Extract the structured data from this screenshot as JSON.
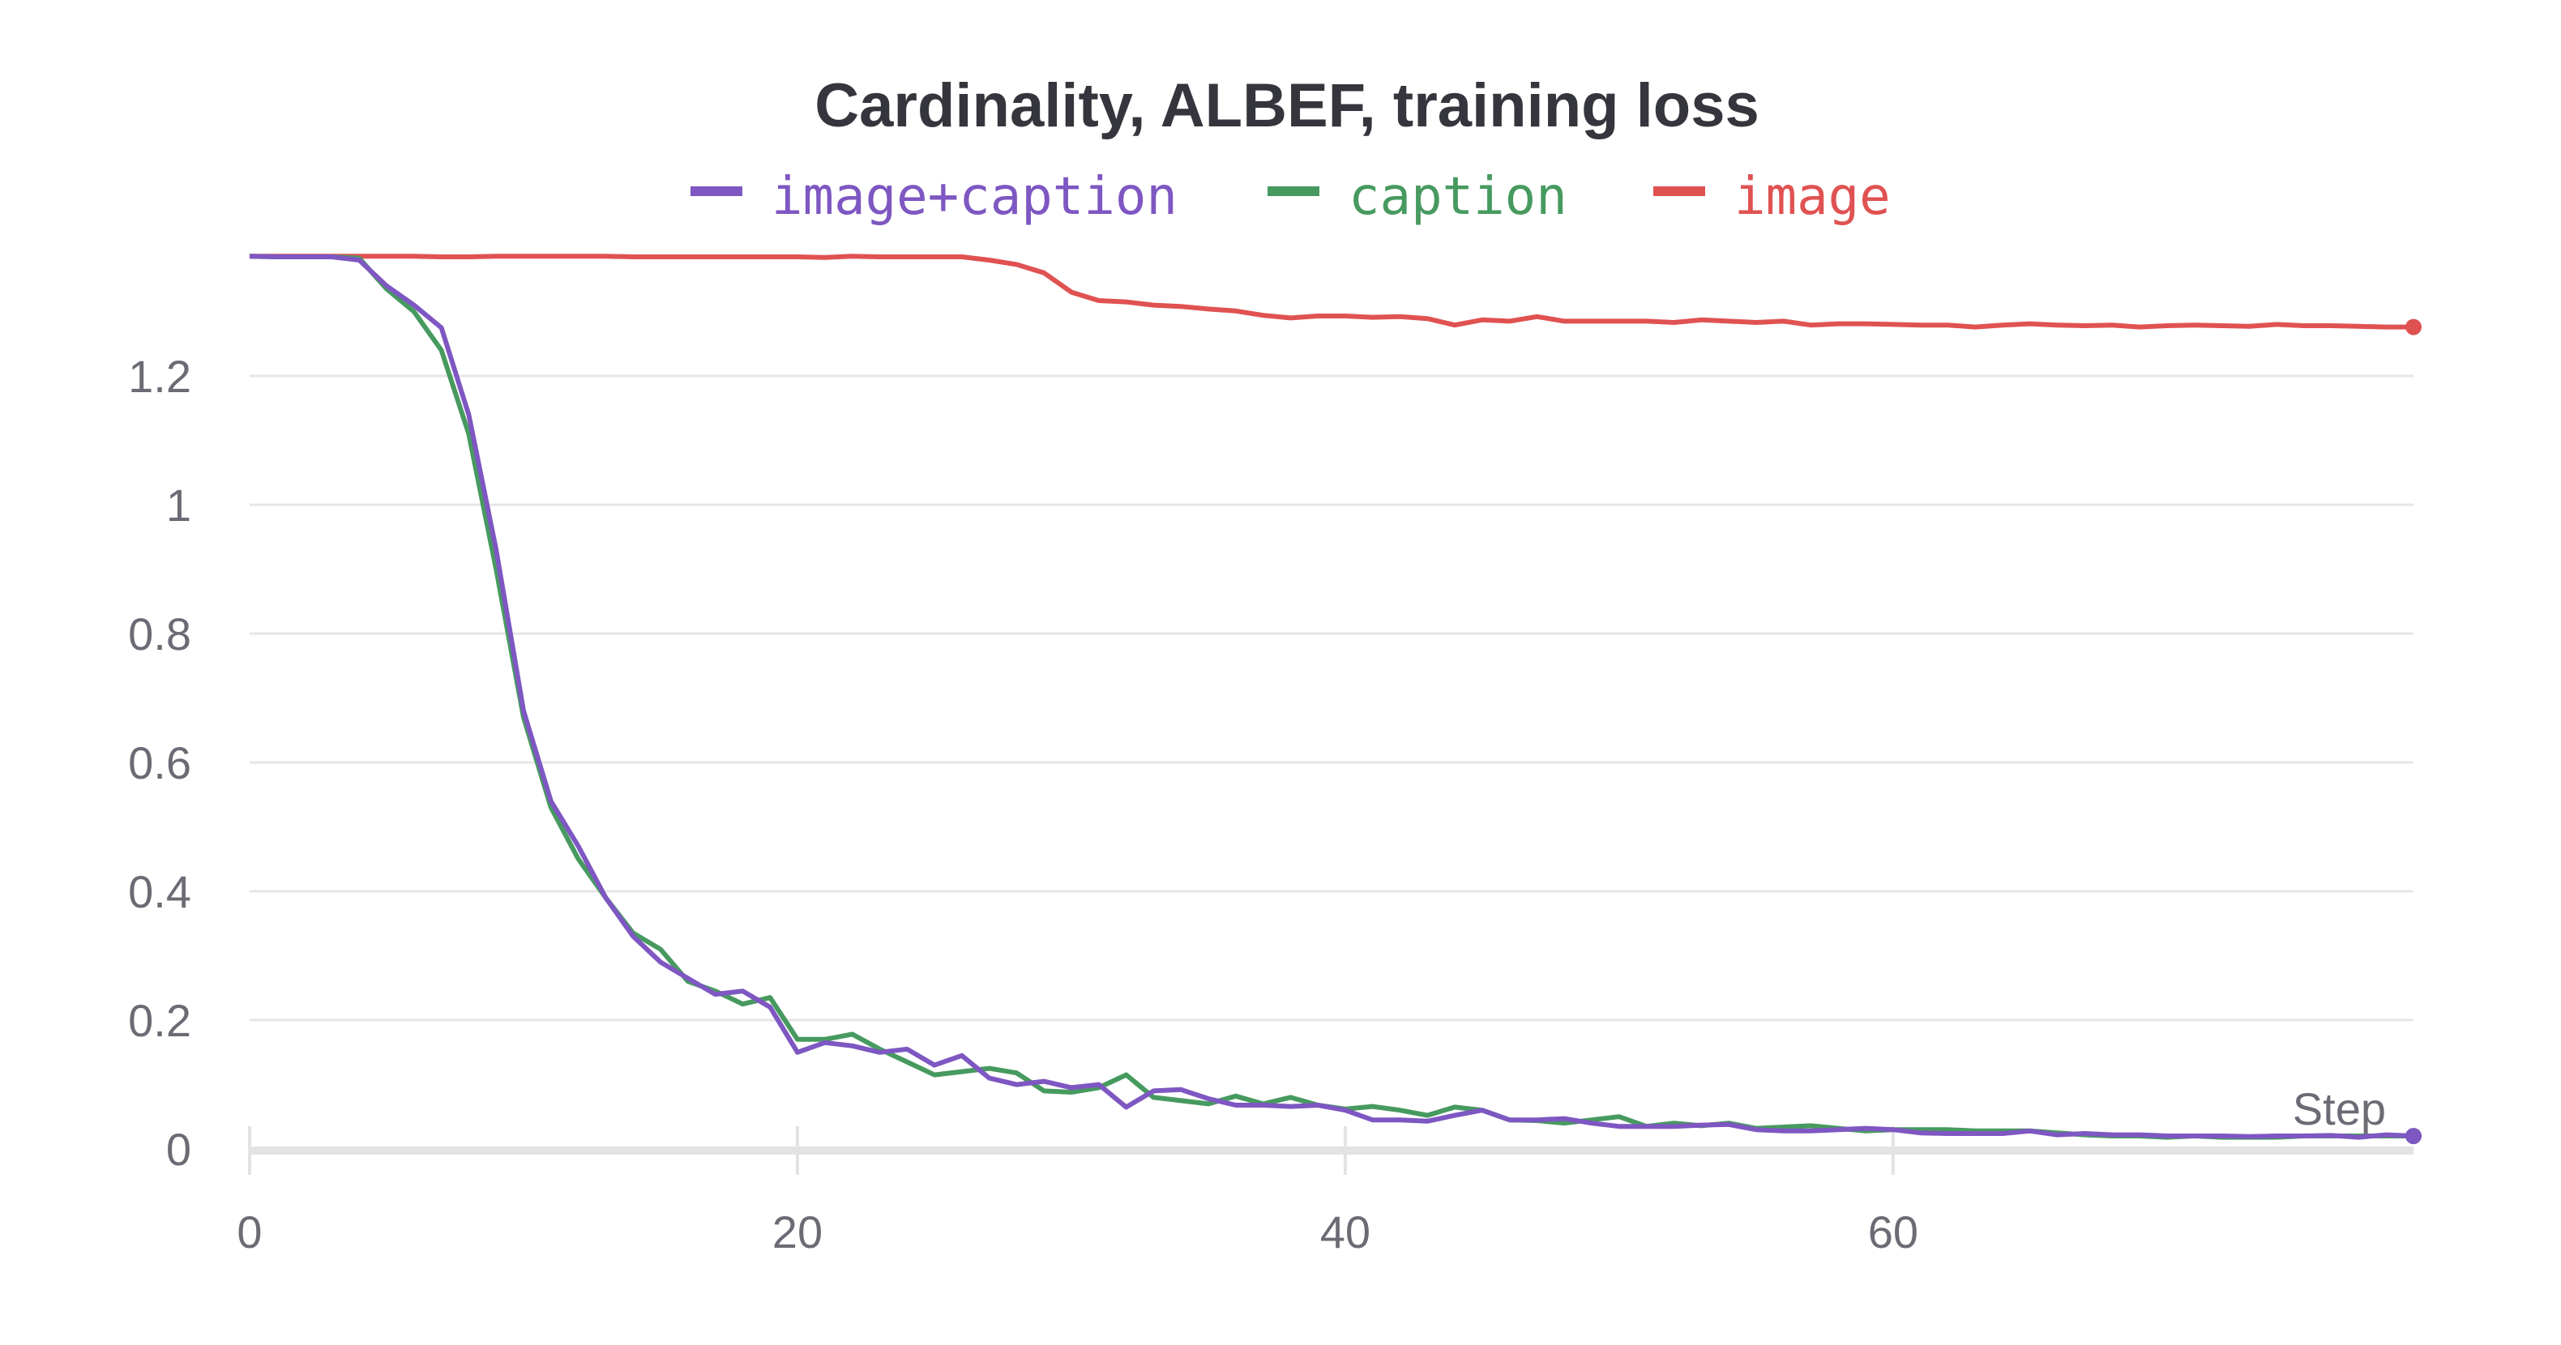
{
  "chart_data": {
    "type": "line",
    "title": "Cardinality, ALBEF, training loss",
    "xlabel": "Step",
    "ylabel": "",
    "xlim": [
      0,
      79
    ],
    "ylim": [
      0,
      1.4
    ],
    "xticks": [
      "0",
      "20",
      "40",
      "60"
    ],
    "yticks": [
      "0",
      "0.2",
      "0.4",
      "0.6",
      "0.8",
      "1",
      "1.2"
    ],
    "grid": true,
    "legend_position": "top",
    "series": [
      {
        "name": "image+caption",
        "color": "#7e57c2",
        "values": [
          1.386,
          1.385,
          1.385,
          1.385,
          1.38,
          1.34,
          1.31,
          1.275,
          1.14,
          0.93,
          0.68,
          0.54,
          0.47,
          0.39,
          0.33,
          0.29,
          0.265,
          0.24,
          0.245,
          0.22,
          0.15,
          0.165,
          0.16,
          0.15,
          0.155,
          0.13,
          0.145,
          0.11,
          0.1,
          0.105,
          0.095,
          0.1,
          0.065,
          0.09,
          0.092,
          0.078,
          0.068,
          0.068,
          0.066,
          0.068,
          0.06,
          0.045,
          0.045,
          0.043,
          0.052,
          0.06,
          0.045,
          0.045,
          0.047,
          0.04,
          0.035,
          0.035,
          0.035,
          0.037,
          0.038,
          0.03,
          0.028,
          0.028,
          0.03,
          0.032,
          0.03,
          0.025,
          0.024,
          0.024,
          0.024,
          0.028,
          0.022,
          0.024,
          0.022,
          0.022,
          0.02,
          0.02,
          0.02,
          0.019,
          0.02,
          0.02,
          0.021,
          0.018,
          0.022,
          0.02
        ]
      },
      {
        "name": "caption",
        "color": "#479a5f",
        "values": [
          1.386,
          1.385,
          1.385,
          1.385,
          1.383,
          1.335,
          1.3,
          1.24,
          1.11,
          0.9,
          0.67,
          0.53,
          0.45,
          0.39,
          0.335,
          0.31,
          0.26,
          0.245,
          0.225,
          0.235,
          0.17,
          0.17,
          0.178,
          0.155,
          0.135,
          0.115,
          0.12,
          0.125,
          0.118,
          0.09,
          0.088,
          0.095,
          0.115,
          0.08,
          0.075,
          0.07,
          0.082,
          0.07,
          0.08,
          0.068,
          0.062,
          0.066,
          0.06,
          0.052,
          0.065,
          0.06,
          0.045,
          0.044,
          0.04,
          0.045,
          0.05,
          0.035,
          0.04,
          0.036,
          0.04,
          0.032,
          0.034,
          0.036,
          0.032,
          0.028,
          0.03,
          0.03,
          0.03,
          0.028,
          0.028,
          0.028,
          0.025,
          0.022,
          0.02,
          0.02,
          0.018,
          0.02,
          0.018,
          0.018,
          0.018,
          0.02,
          0.02,
          0.02,
          0.02,
          0.02
        ]
      },
      {
        "name": "image",
        "color": "#e05252",
        "values": [
          1.386,
          1.386,
          1.386,
          1.386,
          1.386,
          1.386,
          1.386,
          1.385,
          1.385,
          1.386,
          1.386,
          1.386,
          1.386,
          1.386,
          1.385,
          1.385,
          1.385,
          1.385,
          1.385,
          1.385,
          1.385,
          1.384,
          1.386,
          1.385,
          1.385,
          1.385,
          1.385,
          1.38,
          1.373,
          1.36,
          1.33,
          1.317,
          1.315,
          1.31,
          1.308,
          1.304,
          1.301,
          1.294,
          1.29,
          1.293,
          1.293,
          1.291,
          1.292,
          1.289,
          1.279,
          1.287,
          1.285,
          1.292,
          1.285,
          1.285,
          1.285,
          1.285,
          1.283,
          1.287,
          1.285,
          1.283,
          1.285,
          1.279,
          1.281,
          1.281,
          1.28,
          1.279,
          1.279,
          1.276,
          1.279,
          1.281,
          1.279,
          1.278,
          1.279,
          1.276,
          1.278,
          1.279,
          1.278,
          1.277,
          1.28,
          1.278,
          1.278,
          1.277,
          1.276,
          1.276
        ]
      }
    ]
  }
}
